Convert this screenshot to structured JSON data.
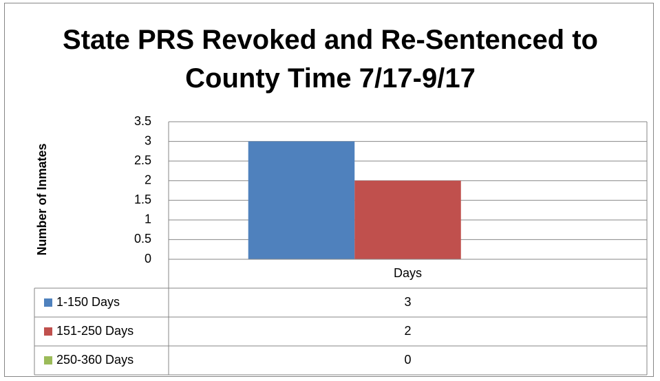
{
  "chart_data": {
    "type": "bar",
    "title": "State PRS Revoked and Re-Sentenced to County Time 7/17-9/17",
    "y_label": "Number of Inmates",
    "categories": [
      "Days"
    ],
    "series": [
      {
        "name": "1-150 Days",
        "color": "#4f81bd",
        "values": [
          3
        ]
      },
      {
        "name": "151-250 Days",
        "color": "#c0504d",
        "values": [
          2
        ]
      },
      {
        "name": "250-360 Days",
        "color": "#9bbb59",
        "values": [
          0
        ]
      }
    ],
    "ylim": [
      0,
      3.5
    ],
    "yticks": [
      0,
      0.5,
      1,
      1.5,
      2,
      2.5,
      3,
      3.5
    ],
    "grid": true,
    "legend": "data-table"
  }
}
